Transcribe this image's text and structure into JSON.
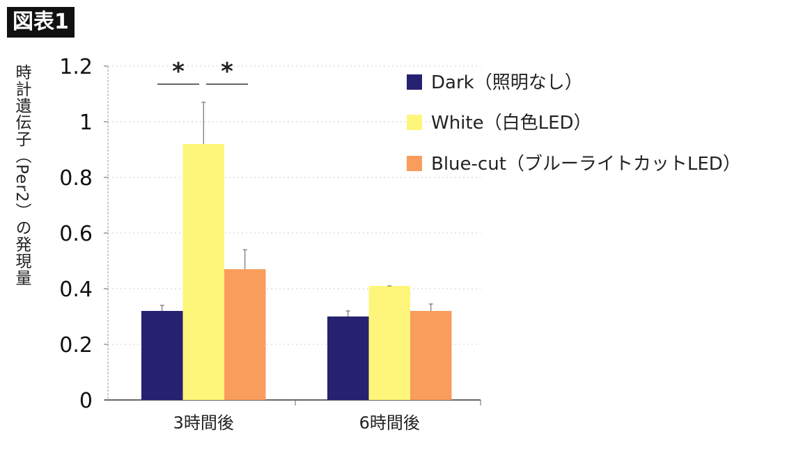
{
  "figure_label": "図表1",
  "chart_data": {
    "type": "bar",
    "title": "",
    "ylabel": "時計遺伝子（Per2）の発現量",
    "xlabel": "",
    "categories": [
      "3時間後",
      "6時間後"
    ],
    "ylim": [
      0,
      1.2
    ],
    "yticks": [
      0,
      0.2,
      0.4,
      0.6,
      0.8,
      1,
      1.2
    ],
    "grid": true,
    "legend_position": "top-right",
    "series": [
      {
        "name": "Dark（照明なし）",
        "color": "#262170",
        "values": [
          0.32,
          0.3
        ],
        "error_upper": [
          0.34,
          0.32
        ]
      },
      {
        "name": "White（白色LED）",
        "color": "#fdf67a",
        "values": [
          0.92,
          0.41
        ],
        "error_upper": [
          1.07,
          0.41
        ]
      },
      {
        "name": "Blue-cut（ブルーライトカットLED）",
        "color": "#f99d5c",
        "values": [
          0.47,
          0.32
        ],
        "error_upper": [
          0.54,
          0.345
        ]
      }
    ],
    "annotations": [
      "*",
      "*"
    ]
  }
}
